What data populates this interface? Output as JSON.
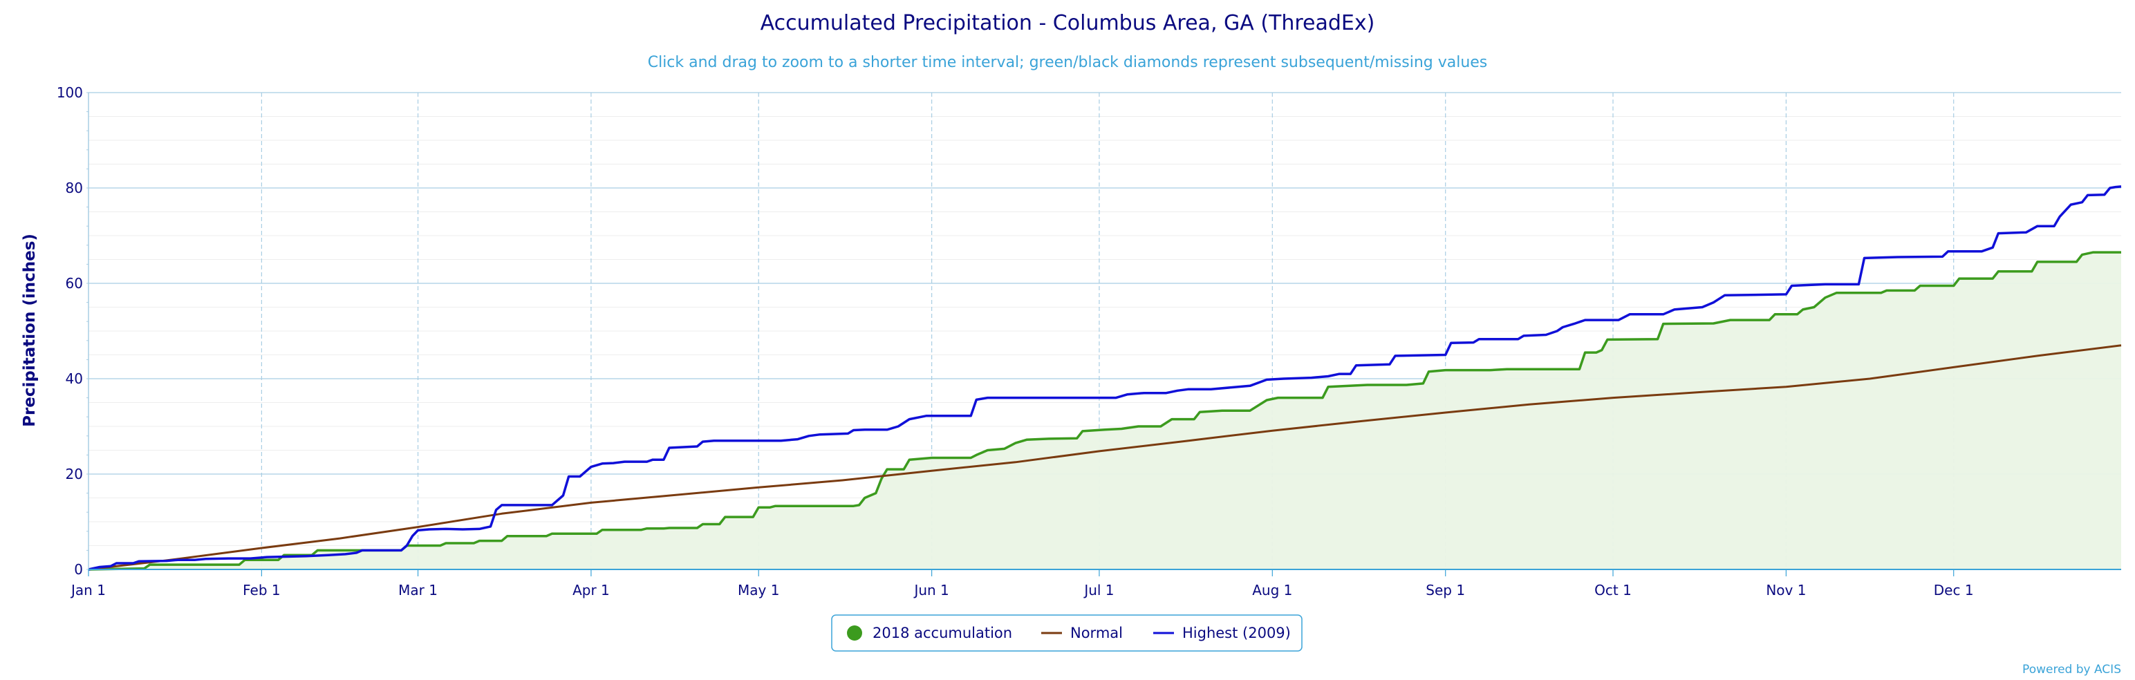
{
  "chart_data": {
    "type": "line",
    "title": "Accumulated Precipitation - Columbus Area, GA (ThreadEx)",
    "subtitle": "Click and drag to zoom to a shorter time interval; green/black diamonds represent subsequent/missing values",
    "ylabel": "Precipitation (inches)",
    "xlabel": "",
    "ylim": [
      0,
      100
    ],
    "yticks": [
      0,
      20,
      40,
      60,
      80,
      100
    ],
    "xlim_day": [
      1,
      365
    ],
    "xticks": [
      {
        "label": "Jan 1",
        "day": 1
      },
      {
        "label": "Feb 1",
        "day": 32
      },
      {
        "label": "Mar 1",
        "day": 60
      },
      {
        "label": "Apr 1",
        "day": 91
      },
      {
        "label": "May 1",
        "day": 121
      },
      {
        "label": "Jun 1",
        "day": 152
      },
      {
        "label": "Jul 1",
        "day": 182
      },
      {
        "label": "Aug 1",
        "day": 213
      },
      {
        "label": "Sep 1",
        "day": 244
      },
      {
        "label": "Oct 1",
        "day": 274
      },
      {
        "label": "Nov 1",
        "day": 305
      },
      {
        "label": "Dec 1",
        "day": 335
      }
    ],
    "grid": true,
    "legend_position": "bottom-center",
    "series": [
      {
        "name": "2018 accumulation",
        "color": "#3c9b1e",
        "fill": "#eaf4e5",
        "style": "step-area",
        "points": [
          [
            1,
            0
          ],
          [
            11,
            0.2
          ],
          [
            12,
            1
          ],
          [
            28,
            1
          ],
          [
            29,
            2
          ],
          [
            35,
            2
          ],
          [
            36,
            3
          ],
          [
            41,
            3
          ],
          [
            42,
            4
          ],
          [
            57,
            4
          ],
          [
            58,
            5
          ],
          [
            64,
            5
          ],
          [
            65,
            5.5
          ],
          [
            70,
            5.5
          ],
          [
            71,
            6
          ],
          [
            75,
            6
          ],
          [
            76,
            7
          ],
          [
            83,
            7
          ],
          [
            84,
            7.5
          ],
          [
            92,
            7.5
          ],
          [
            93,
            8.3
          ],
          [
            100,
            8.3
          ],
          [
            101,
            8.6
          ],
          [
            104,
            8.6
          ],
          [
            105,
            8.7
          ],
          [
            110,
            8.7
          ],
          [
            111,
            9.5
          ],
          [
            114,
            9.5
          ],
          [
            115,
            11
          ],
          [
            120,
            11
          ],
          [
            121,
            13
          ],
          [
            123,
            13
          ],
          [
            124,
            13.3
          ],
          [
            138,
            13.3
          ],
          [
            139,
            13.5
          ],
          [
            140,
            15
          ],
          [
            142,
            16
          ],
          [
            143,
            19
          ],
          [
            144,
            21
          ],
          [
            147,
            21
          ],
          [
            148,
            23
          ],
          [
            152,
            23.4
          ],
          [
            159,
            23.4
          ],
          [
            160,
            24
          ],
          [
            162,
            25
          ],
          [
            165,
            25.3
          ],
          [
            167,
            26.5
          ],
          [
            169,
            27.2
          ],
          [
            173,
            27.4
          ],
          [
            178,
            27.5
          ],
          [
            179,
            29
          ],
          [
            183,
            29.3
          ],
          [
            186,
            29.5
          ],
          [
            189,
            30
          ],
          [
            193,
            30
          ],
          [
            195,
            31.5
          ],
          [
            199,
            31.5
          ],
          [
            200,
            33
          ],
          [
            204,
            33.3
          ],
          [
            209,
            33.3
          ],
          [
            212,
            35.5
          ],
          [
            214,
            36
          ],
          [
            222,
            36
          ],
          [
            223,
            38.3
          ],
          [
            230,
            38.7
          ],
          [
            237,
            38.7
          ],
          [
            240,
            39
          ],
          [
            241,
            41.5
          ],
          [
            244,
            41.8
          ],
          [
            252,
            41.8
          ],
          [
            255,
            42
          ],
          [
            268,
            42
          ],
          [
            269,
            45.5
          ],
          [
            271,
            45.5
          ],
          [
            272,
            46
          ],
          [
            273,
            48.2
          ],
          [
            282,
            48.3
          ],
          [
            283,
            51.5
          ],
          [
            292,
            51.6
          ],
          [
            295,
            52.3
          ],
          [
            302,
            52.3
          ],
          [
            303,
            53.5
          ],
          [
            307,
            53.5
          ],
          [
            308,
            54.5
          ],
          [
            310,
            55
          ],
          [
            312,
            57
          ],
          [
            314,
            58
          ],
          [
            322,
            58
          ],
          [
            323,
            58.5
          ],
          [
            328,
            58.5
          ],
          [
            329,
            59.5
          ],
          [
            335,
            59.5
          ],
          [
            336,
            61
          ],
          [
            342,
            61
          ],
          [
            343,
            62.5
          ],
          [
            349,
            62.5
          ],
          [
            350,
            64.5
          ],
          [
            357,
            64.5
          ],
          [
            358,
            66
          ],
          [
            360,
            66.5
          ],
          [
            365,
            66.5
          ]
        ]
      },
      {
        "name": "Normal",
        "color": "#7a3b10",
        "style": "line",
        "points": [
          [
            1,
            0
          ],
          [
            15,
            1.9
          ],
          [
            32,
            4.5
          ],
          [
            46,
            6.5
          ],
          [
            60,
            8.9
          ],
          [
            75,
            11.7
          ],
          [
            91,
            14
          ],
          [
            106,
            15.6
          ],
          [
            121,
            17.2
          ],
          [
            136,
            18.7
          ],
          [
            152,
            20.7
          ],
          [
            167,
            22.5
          ],
          [
            182,
            24.8
          ],
          [
            198,
            27
          ],
          [
            213,
            29.1
          ],
          [
            229,
            31.1
          ],
          [
            244,
            32.9
          ],
          [
            259,
            34.6
          ],
          [
            274,
            36
          ],
          [
            290,
            37.2
          ],
          [
            305,
            38.3
          ],
          [
            320,
            40
          ],
          [
            335,
            42.4
          ],
          [
            350,
            44.8
          ],
          [
            365,
            47
          ]
        ]
      },
      {
        "name": "Highest (2009)",
        "color": "#1010d8",
        "style": "step",
        "points": [
          [
            1,
            0
          ],
          [
            3,
            0.5
          ],
          [
            5,
            0.7
          ],
          [
            6,
            1.3
          ],
          [
            9,
            1.3
          ],
          [
            10,
            1.7
          ],
          [
            15,
            1.8
          ],
          [
            17,
            2
          ],
          [
            20,
            2
          ],
          [
            22,
            2.2
          ],
          [
            26,
            2.3
          ],
          [
            30,
            2.3
          ],
          [
            33,
            2.6
          ],
          [
            37,
            2.7
          ],
          [
            40,
            2.8
          ],
          [
            44,
            3
          ],
          [
            47,
            3.2
          ],
          [
            49,
            3.5
          ],
          [
            50,
            4
          ],
          [
            57,
            4
          ],
          [
            58,
            5
          ],
          [
            59,
            7
          ],
          [
            60,
            8.2
          ],
          [
            62,
            8.4
          ],
          [
            65,
            8.5
          ],
          [
            68,
            8.4
          ],
          [
            71,
            8.5
          ],
          [
            73,
            9
          ],
          [
            74,
            12.5
          ],
          [
            75,
            13.5
          ],
          [
            84,
            13.5
          ],
          [
            86,
            15.5
          ],
          [
            87,
            19.5
          ],
          [
            89,
            19.5
          ],
          [
            91,
            21.5
          ],
          [
            93,
            22.2
          ],
          [
            95,
            22.3
          ],
          [
            97,
            22.6
          ],
          [
            101,
            22.6
          ],
          [
            102,
            23
          ],
          [
            104,
            23
          ],
          [
            105,
            25.5
          ],
          [
            110,
            25.8
          ],
          [
            111,
            26.8
          ],
          [
            113,
            27
          ],
          [
            125,
            27
          ],
          [
            128,
            27.3
          ],
          [
            130,
            28
          ],
          [
            132,
            28.3
          ],
          [
            137,
            28.5
          ],
          [
            138,
            29.2
          ],
          [
            140,
            29.3
          ],
          [
            144,
            29.3
          ],
          [
            146,
            30
          ],
          [
            148,
            31.5
          ],
          [
            151,
            32.2
          ],
          [
            159,
            32.2
          ],
          [
            160,
            35.6
          ],
          [
            162,
            36
          ],
          [
            185,
            36
          ],
          [
            187,
            36.7
          ],
          [
            190,
            37
          ],
          [
            194,
            37
          ],
          [
            196,
            37.5
          ],
          [
            198,
            37.8
          ],
          [
            202,
            37.8
          ],
          [
            206,
            38.2
          ],
          [
            209,
            38.5
          ],
          [
            212,
            39.8
          ],
          [
            215,
            40
          ],
          [
            220,
            40.2
          ],
          [
            223,
            40.5
          ],
          [
            225,
            41
          ],
          [
            227,
            41
          ],
          [
            228,
            42.8
          ],
          [
            234,
            43
          ],
          [
            235,
            44.8
          ],
          [
            244,
            45
          ],
          [
            245,
            47.5
          ],
          [
            249,
            47.6
          ],
          [
            250,
            48.3
          ],
          [
            257,
            48.3
          ],
          [
            258,
            49
          ],
          [
            262,
            49.2
          ],
          [
            264,
            50
          ],
          [
            265,
            50.8
          ],
          [
            267,
            51.5
          ],
          [
            269,
            52.3
          ],
          [
            275,
            52.3
          ],
          [
            277,
            53.5
          ],
          [
            283,
            53.5
          ],
          [
            285,
            54.5
          ],
          [
            290,
            55
          ],
          [
            292,
            56
          ],
          [
            294,
            57.5
          ],
          [
            305,
            57.7
          ],
          [
            306,
            59.5
          ],
          [
            312,
            59.8
          ],
          [
            318,
            59.8
          ],
          [
            319,
            65.3
          ],
          [
            325,
            65.5
          ],
          [
            333,
            65.6
          ],
          [
            334,
            66.7
          ],
          [
            340,
            66.7
          ],
          [
            342,
            67.5
          ],
          [
            343,
            70.5
          ],
          [
            348,
            70.7
          ],
          [
            350,
            72
          ],
          [
            353,
            72
          ],
          [
            354,
            74
          ],
          [
            356,
            76.5
          ],
          [
            358,
            77
          ],
          [
            359,
            78.5
          ],
          [
            362,
            78.6
          ],
          [
            363,
            80
          ],
          [
            364,
            80.2
          ],
          [
            365,
            80.3
          ]
        ]
      }
    ]
  },
  "legend": {
    "items": [
      {
        "label": "2018 accumulation",
        "color": "#3c9b1e",
        "marker": "circle"
      },
      {
        "label": "Normal",
        "color": "#7a3b10",
        "marker": "line"
      },
      {
        "label": "Highest (2009)",
        "color": "#1010d8",
        "marker": "line"
      }
    ]
  },
  "credits": "Powered by ACIS"
}
